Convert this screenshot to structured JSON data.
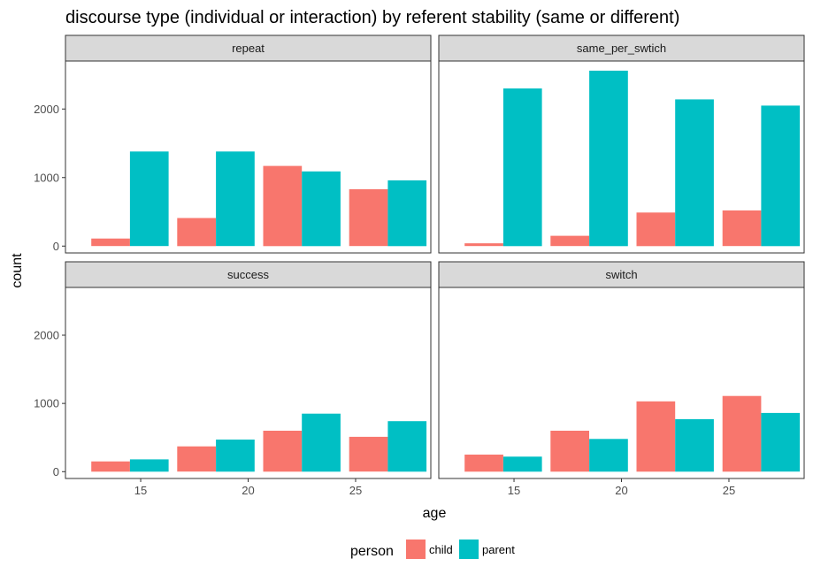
{
  "chart_data": {
    "type": "bar",
    "title": "discourse type (individual or interaction) by referent stability (same or different)",
    "xlabel": "age",
    "ylabel": "count",
    "x_ticks": [
      15,
      20,
      25
    ],
    "y_ticks": [
      0,
      1000,
      2000
    ],
    "ylim": [
      -100,
      2700
    ],
    "xlim": [
      11.5,
      28.5
    ],
    "grid": false,
    "legend": {
      "title": "person",
      "placement": "bottom",
      "entries": [
        {
          "name": "child",
          "color": "#F8766D"
        },
        {
          "name": "parent",
          "color": "#00BFC4"
        }
      ]
    },
    "groups": [
      14.5,
      18.5,
      22.5,
      26.5
    ],
    "panels": [
      {
        "label": "repeat",
        "series": [
          {
            "name": "child",
            "values": [
              110,
              410,
              1170,
              830
            ]
          },
          {
            "name": "parent",
            "values": [
              1380,
              1380,
              1090,
              960
            ]
          }
        ]
      },
      {
        "label": "same_per_swtich",
        "series": [
          {
            "name": "child",
            "values": [
              40,
              150,
              490,
              520
            ]
          },
          {
            "name": "parent",
            "values": [
              2300,
              2560,
              2140,
              2050
            ]
          }
        ]
      },
      {
        "label": "success",
        "series": [
          {
            "name": "child",
            "values": [
              150,
              370,
              600,
              510
            ]
          },
          {
            "name": "parent",
            "values": [
              180,
              470,
              850,
              740
            ]
          }
        ]
      },
      {
        "label": "switch",
        "series": [
          {
            "name": "child",
            "values": [
              250,
              600,
              1030,
              1110
            ]
          },
          {
            "name": "parent",
            "values": [
              220,
              480,
              770,
              860
            ]
          }
        ]
      }
    ]
  }
}
